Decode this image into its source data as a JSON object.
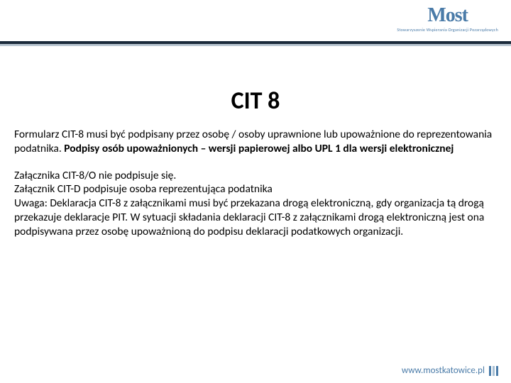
{
  "logo": {
    "text": "Most",
    "subtitle": "Stowarzyszenie Wspierania Organizacji Pozarządowych"
  },
  "title": "CIT 8",
  "para1_plain": "Formularz CIT-8 musi być podpisany przez osobę / osoby uprawnione lub upoważnione do reprezentowania podatnika. ",
  "para1_bold": "Podpisy osób upoważnionych – wersji papierowej albo UPL 1 dla wersji elektronicznej",
  "para2": "Załącznika CIT-8/O nie podpisuje się.\nZałącznik CIT-D podpisuje osoba reprezentująca podatnika\nUwaga: Deklaracja CIT-8 z załącznikami musi być przekazana drogą elektroniczną, gdy organizacja tą drogą przekazuje deklaracje PIT. W sytuacji składania deklaracji CIT-8 z załącznikami drogą elektroniczną jest ona podpisywana przez osobę upoważnioną do podpisu deklaracji podatkowych organizacji.",
  "footer_url": "www.mostkatowice.pl",
  "colors": {
    "accent": "#4a7ba8",
    "dark_bar": "#1a2a3a",
    "light_bar": "#b8c5d0",
    "background": "#ffffff",
    "text": "#000000"
  },
  "typography": {
    "title_fontsize": 34,
    "body_fontsize": 15.5,
    "logo_fontsize": 28,
    "footer_fontsize": 13
  }
}
